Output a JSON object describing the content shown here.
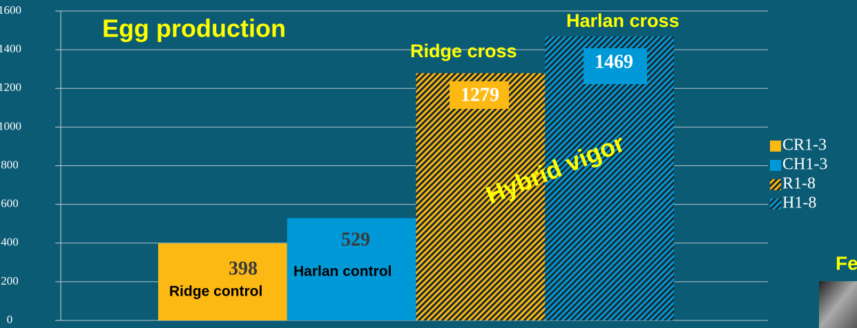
{
  "chart_data": {
    "type": "bar",
    "title": "Egg production",
    "categories": [
      null
    ],
    "series": [
      {
        "name": "CR1-3",
        "color": "#fdb913",
        "hatched": false,
        "values": [
          398
        ]
      },
      {
        "name": "CH1-3",
        "color": "#0099d8",
        "hatched": false,
        "values": [
          529
        ]
      },
      {
        "name": "R1-8",
        "color": "#fdb913",
        "hatched": true,
        "values": [
          1279
        ]
      },
      {
        "name": "H1-8",
        "color": "#0099d8",
        "hatched": true,
        "values": [
          1469
        ]
      }
    ],
    "annotations": [
      "Ridge control",
      "Harlan control",
      "Ridge cross",
      "Harlan cross",
      "Hybrid vigor",
      "Fe"
    ],
    "ylim": [
      0,
      1600
    ],
    "yticks": [
      0,
      200,
      400,
      600,
      800,
      1000,
      1200,
      1400,
      1600
    ],
    "grid": true,
    "legend": "right"
  }
}
